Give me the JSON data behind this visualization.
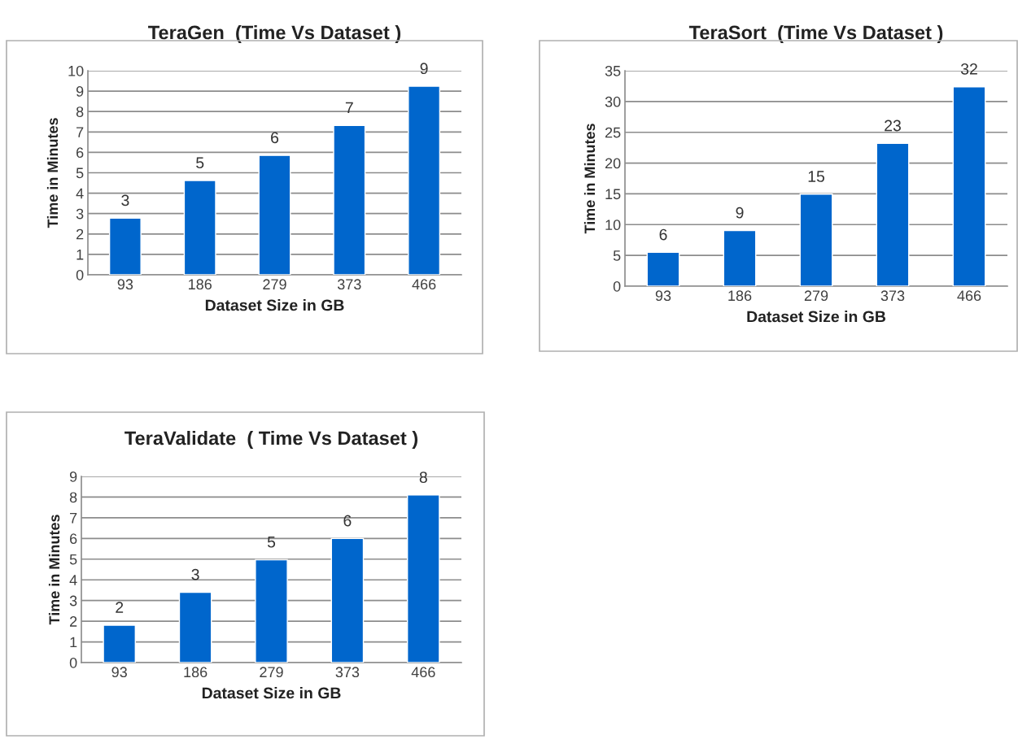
{
  "chart_data": [
    {
      "type": "bar",
      "title": "TeraGen  (Time Vs Dataset )",
      "xlabel": "Dataset Size in GB",
      "ylabel": "Time in Minutes",
      "categories": [
        "93",
        "186",
        "279",
        "373",
        "466"
      ],
      "values": [
        2.78,
        4.62,
        5.85,
        7.32,
        9.24
      ],
      "value_labels": [
        "3",
        "5",
        "6",
        "7",
        "9"
      ],
      "color": "#0066cc",
      "ylim": [
        0,
        10
      ],
      "yticks": [
        0,
        1,
        2,
        3,
        4,
        5,
        6,
        7,
        8,
        9,
        10
      ],
      "grid": "y",
      "legend": false
    },
    {
      "type": "bar",
      "title": "TeraSort  (Time Vs Dataset )",
      "xlabel": "Dataset Size in GB",
      "ylabel": "Time in Minutes",
      "categories": [
        "93",
        "186",
        "279",
        "373",
        "466"
      ],
      "values": [
        5.5,
        9.05,
        14.95,
        23.2,
        32.4
      ],
      "value_labels": [
        "6",
        "9",
        "15",
        "23",
        "32"
      ],
      "color": "#0066cc",
      "ylim": [
        0,
        35
      ],
      "yticks": [
        0,
        5,
        10,
        15,
        20,
        25,
        30,
        35
      ],
      "grid": "y",
      "legend": false
    },
    {
      "type": "bar",
      "title": "TeraValidate  ( Time Vs Dataset )",
      "xlabel": "Dataset Size in GB",
      "ylabel": "Time in Minutes",
      "categories": [
        "93",
        "186",
        "279",
        "373",
        "466"
      ],
      "values": [
        1.81,
        3.4,
        4.97,
        6.0,
        8.1
      ],
      "value_labels": [
        "2",
        "3",
        "5",
        "6",
        "8"
      ],
      "color": "#0066cc",
      "ylim": [
        0,
        9
      ],
      "yticks": [
        0,
        1,
        2,
        3,
        4,
        5,
        6,
        7,
        8,
        9
      ],
      "grid": "y",
      "legend": false
    }
  ]
}
